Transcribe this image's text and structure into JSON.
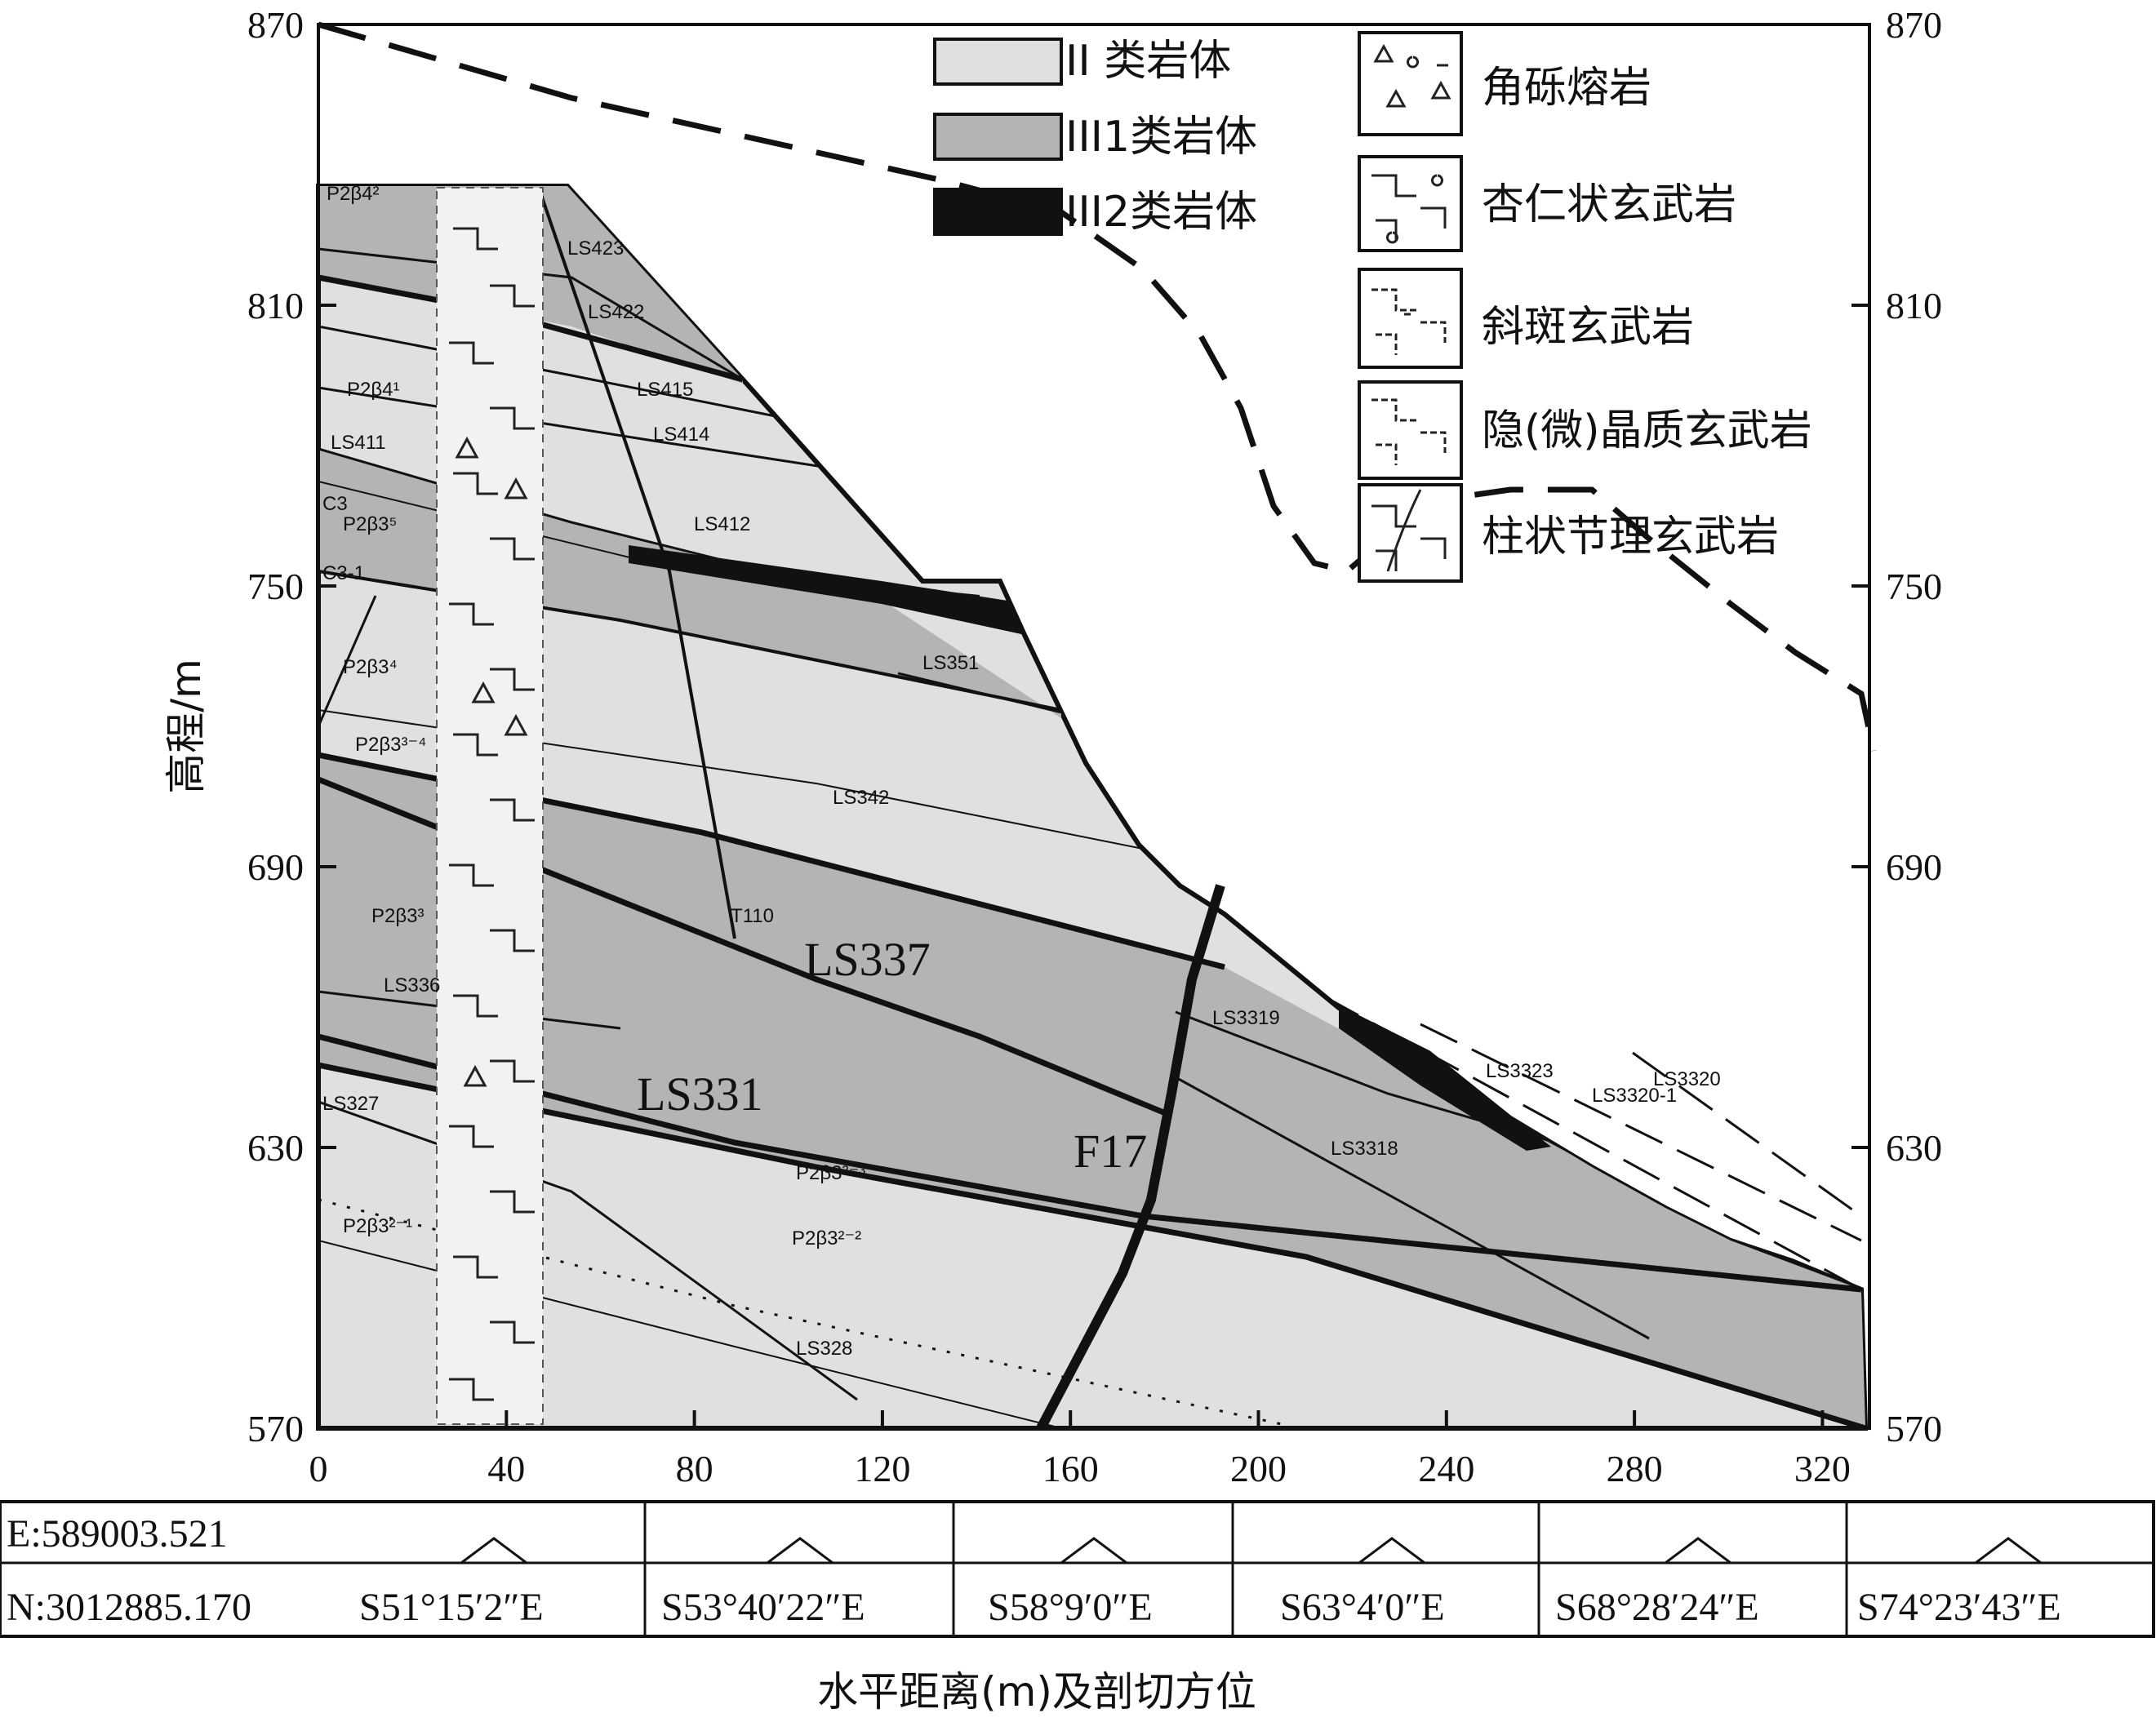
{
  "axis": {
    "ylabel": "高程/m",
    "xlabel": "水平距离(m)及剖切方位",
    "y_ticks": [
      "570",
      "630",
      "690",
      "750",
      "810",
      "870"
    ],
    "x_ticks": [
      "0",
      "40",
      "80",
      "120",
      "160",
      "200",
      "240",
      "280",
      "320"
    ],
    "ylim": [
      570,
      870
    ],
    "xlim": [
      0,
      330
    ]
  },
  "legend_rock_class": [
    {
      "label": "II 类岩体",
      "color": "#e0e0e0"
    },
    {
      "label": "III1类岩体",
      "color": "#b4b4b4"
    },
    {
      "label": "III2类岩体",
      "color": "#111111"
    }
  ],
  "legend_rock_type": [
    {
      "label": "角砾熔岩",
      "icon": "breccia-lava-pattern"
    },
    {
      "label": "杏仁状玄武岩",
      "icon": "amygdaloidal-basalt-pattern"
    },
    {
      "label": "斜斑玄武岩",
      "icon": "porphyritic-basalt-pattern"
    },
    {
      "label": "隐(微)晶质玄武岩",
      "icon": "cryptocrystalline-basalt-pattern"
    },
    {
      "label": "柱状节理玄武岩",
      "icon": "columnar-jointed-basalt-pattern"
    }
  ],
  "labels": {
    "ls337": "LS337",
    "ls331": "LS331",
    "f17": "F17",
    "ls423": "LS423",
    "ls422": "LS422",
    "ls415": "LS415",
    "ls414": "LS414",
    "ls411": "LS411",
    "ls412": "LS412",
    "ls351": "LS351",
    "ls342": "LS342",
    "ls336": "LS336",
    "ls327": "LS327",
    "ls328": "LS328",
    "ls3319": "LS3319",
    "ls3318": "LS3318",
    "ls3323": "LS3323",
    "ls3320_1": "LS3320-1",
    "ls3320": "LS3320",
    "t110": "T110",
    "p2b4_2": "P2β4²",
    "p2b4_1": "P2β4¹",
    "c3": "C3",
    "p2b3_5": "P2β3⁵",
    "c3_1": "C3-1",
    "p2b3_4": "P2β3⁴",
    "p2b3_3_4": "P2β3³⁻⁴",
    "p2b3_3": "P2β3³",
    "p2b3_2_3": "P2β3²⁻³",
    "p2b3_2_2": "P2β3²⁻²",
    "p2b3_2_1": "P2β3²⁻¹"
  },
  "bottom_table": {
    "easting": "E:589003.521",
    "northing": "N:3012885.170",
    "bearings": [
      "S51°15′2″E",
      "S53°40′22″E",
      "S58°9′0″E",
      "S63°4′0″E",
      "S68°28′24″E",
      "S74°23′43″E"
    ]
  }
}
